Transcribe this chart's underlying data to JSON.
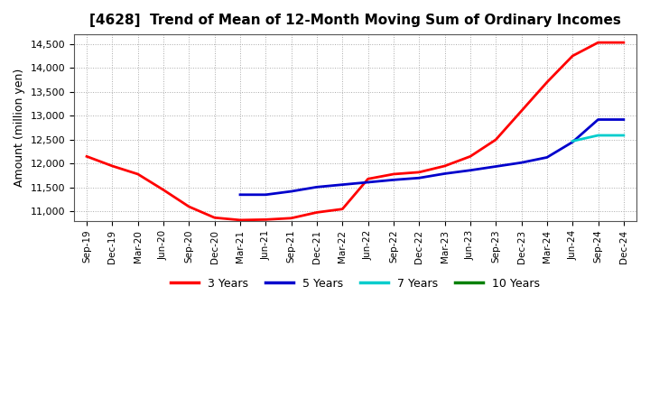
{
  "title": "[4628]  Trend of Mean of 12-Month Moving Sum of Ordinary Incomes",
  "ylabel": "Amount (million yen)",
  "background_color": "#ffffff",
  "grid_color": "#aaaaaa",
  "ylim": [
    10800,
    14700
  ],
  "yticks": [
    11000,
    11500,
    12000,
    12500,
    13000,
    13500,
    14000,
    14500
  ],
  "x_labels": [
    "Sep-19",
    "Dec-19",
    "Mar-20",
    "Jun-20",
    "Sep-20",
    "Dec-20",
    "Mar-21",
    "Jun-21",
    "Sep-21",
    "Dec-21",
    "Mar-22",
    "Jun-22",
    "Sep-22",
    "Dec-22",
    "Mar-23",
    "Jun-23",
    "Sep-23",
    "Dec-23",
    "Mar-24",
    "Jun-24",
    "Sep-24",
    "Dec-24"
  ],
  "series": {
    "3 Years": {
      "color": "#ff0000",
      "values": [
        12150,
        11950,
        11780,
        11450,
        11100,
        10870,
        10820,
        10830,
        10860,
        10980,
        11050,
        11680,
        11780,
        11820,
        11950,
        12150,
        12500,
        13100,
        13700,
        14250,
        14530,
        14530
      ]
    },
    "5 Years": {
      "color": "#0000cc",
      "values": [
        null,
        null,
        null,
        null,
        null,
        null,
        11350,
        11350,
        11420,
        11510,
        11560,
        11610,
        11660,
        11700,
        11790,
        11860,
        11940,
        12020,
        12130,
        12450,
        12920,
        12920
      ]
    },
    "7 Years": {
      "color": "#00cccc",
      "values": [
        null,
        null,
        null,
        null,
        null,
        null,
        null,
        null,
        null,
        null,
        null,
        null,
        null,
        null,
        null,
        null,
        null,
        null,
        null,
        12470,
        12590,
        12590
      ]
    },
    "10 Years": {
      "color": "#008000",
      "values": [
        null,
        null,
        null,
        null,
        null,
        null,
        null,
        null,
        null,
        null,
        null,
        null,
        null,
        null,
        null,
        null,
        null,
        null,
        null,
        null,
        null,
        null
      ]
    }
  },
  "legend_labels": [
    "3 Years",
    "5 Years",
    "7 Years",
    "10 Years"
  ],
  "legend_colors": [
    "#ff0000",
    "#0000cc",
    "#00cccc",
    "#008000"
  ]
}
